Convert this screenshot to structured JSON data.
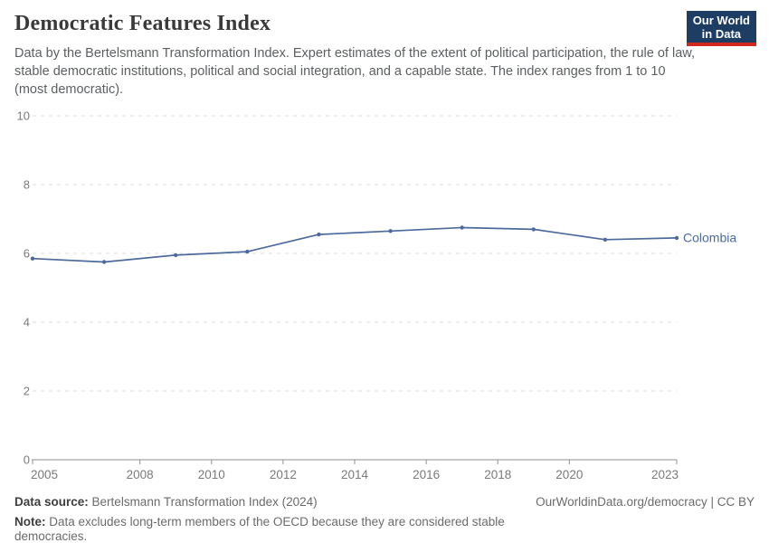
{
  "header": {
    "title": "Democratic Features Index",
    "subtitle": "Data by the Bertelsmann Transformation Index. Expert estimates of the extent of political participation, the rule of law, stable democratic institutions, political and social integration, and a capable state. The index ranges from 1 to 10 (most democratic).",
    "logo": {
      "line1": "Our World",
      "line2": "in Data"
    }
  },
  "chart_data": {
    "type": "line",
    "title": "Democratic Features Index",
    "entity_label": "Colombia",
    "x": [
      2005,
      2007,
      2009,
      2011,
      2013,
      2015,
      2017,
      2019,
      2021,
      2023
    ],
    "series": [
      {
        "name": "Colombia",
        "color": "#4c6a9c",
        "values": [
          5.85,
          5.75,
          5.95,
          6.05,
          6.55,
          6.65,
          6.75,
          6.7,
          6.4,
          6.45
        ]
      }
    ],
    "xlim": [
      2005,
      2023
    ],
    "ylim": [
      0,
      10
    ],
    "x_ticks": [
      2005,
      2008,
      2010,
      2012,
      2014,
      2016,
      2018,
      2020,
      2023
    ],
    "y_ticks": [
      0,
      2,
      4,
      6,
      8,
      10
    ],
    "grid": "horizontal-dashed",
    "legend_position": "line-end-label",
    "xlabel": "",
    "ylabel": ""
  },
  "footer": {
    "datasource_label": "Data source:",
    "datasource_value": "Bertelsmann Transformation Index (2024)",
    "note_label": "Note:",
    "note_value": "Data excludes long-term members of the OECD because they are considered stable democracies.",
    "link": "OurWorldinData.org/democracy | CC BY"
  },
  "colors": {
    "line": "#4c6a9c",
    "grid": "#dcdcdc",
    "axis": "#8f8f8f",
    "tick_label": "#7a7a7a",
    "logo_bg": "#1d3d63",
    "logo_accent": "#d3281e"
  }
}
